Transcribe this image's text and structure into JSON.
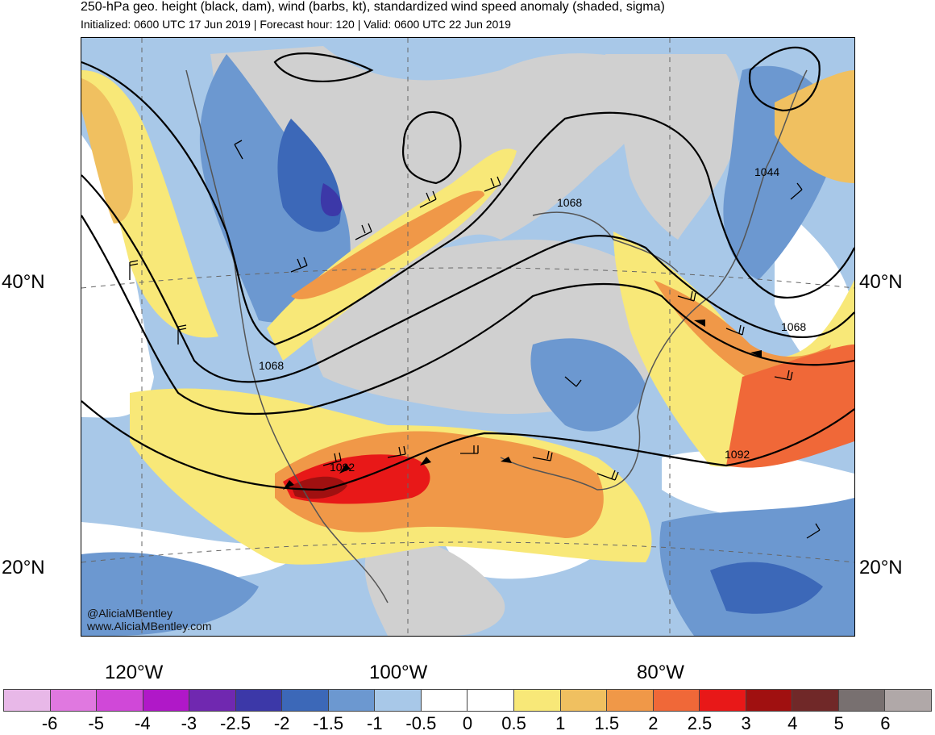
{
  "title": "250-hPa geo. height (black, dam), wind (barbs, kt), standardized wind speed anomaly (shaded, sigma)",
  "subtitle": "Initialized: 0600 UTC 17 Jun 2019 | Forecast hour: 120 | Valid: 0600 UTC 22 Jun 2019",
  "lat_labels": {
    "n40": "40°N",
    "n20": "20°N"
  },
  "lon_labels": {
    "w120": "120°W",
    "w100": "100°W",
    "w80": "80°W"
  },
  "contour_labels": [
    "1068",
    "1068",
    "1068",
    "1044",
    "1092",
    "1092"
  ],
  "watermark": {
    "handle": "@AliciaMBentley",
    "url": "www.AliciaMBentley.com"
  },
  "colorbar": {
    "colors": [
      "#e8b8e8",
      "#e078e0",
      "#d048d8",
      "#b018c8",
      "#7028b0",
      "#3c38a8",
      "#3c68b8",
      "#6c98d0",
      "#a8c8e8",
      "#ffffff",
      "#ffffff",
      "#f8e878",
      "#f0c060",
      "#f09848",
      "#f06838",
      "#e81818",
      "#a01010",
      "#702828",
      "#787070",
      "#b0a8a8"
    ],
    "labels": [
      "-6",
      "-5",
      "-4",
      "-3",
      "-2.5",
      "-2",
      "-1.5",
      "-1",
      "-0.5",
      "0",
      "0.5",
      "1",
      "1.5",
      "2",
      "2.5",
      "3",
      "4",
      "5",
      "6"
    ]
  }
}
